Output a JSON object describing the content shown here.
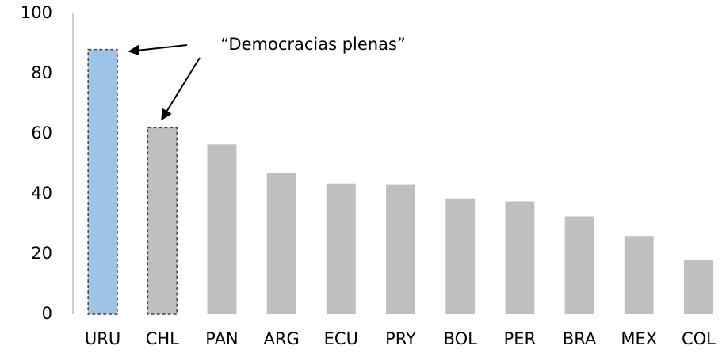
{
  "chart_data": {
    "type": "bar",
    "annotation": "“Democracias plenas”",
    "categories": [
      "URU",
      "CHL",
      "PAN",
      "ARG",
      "ECU",
      "PRY",
      "BOL",
      "PER",
      "BRA",
      "MEX",
      "COL"
    ],
    "values": [
      88,
      62,
      56.5,
      47,
      43.5,
      43,
      38.5,
      37.5,
      32.5,
      26,
      18
    ],
    "colors": [
      "#9dc3e6",
      "#bfbfbf",
      "#bfbfbf",
      "#bfbfbf",
      "#bfbfbf",
      "#bfbfbf",
      "#bfbfbf",
      "#bfbfbf",
      "#bfbfbf",
      "#bfbfbf",
      "#bfbfbf"
    ],
    "ylim": [
      0,
      100
    ],
    "yticks": [
      0,
      20,
      40,
      60,
      80,
      100
    ],
    "grid": false
  }
}
